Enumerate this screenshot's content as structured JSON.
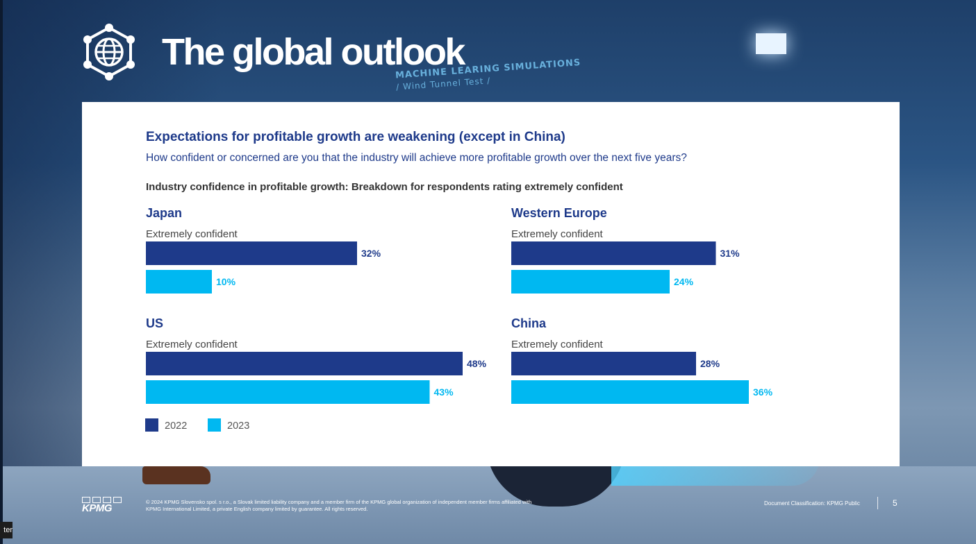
{
  "slide": {
    "title": "The global outlook",
    "heading": "Expectations for profitable growth are weakening (except in China)",
    "question": "How confident or concerned are you that the industry will achieve more profitable growth over the next five years?"
  },
  "chart_data": {
    "type": "bar",
    "orientation": "horizontal",
    "title": "Industry confidence in profitable growth: Breakdown for respondents rating extremely confident",
    "category_label": "Extremely confident",
    "value_suffix": "%",
    "xlim": [
      0,
      50
    ],
    "legend": [
      {
        "name": "2022",
        "color": "#1e3a8a"
      },
      {
        "name": "2023",
        "color": "#00b8f1"
      }
    ],
    "panels": [
      {
        "region": "Japan",
        "values": {
          "2022": 32,
          "2023": 10
        }
      },
      {
        "region": "Western Europe",
        "values": {
          "2022": 31,
          "2023": 24
        }
      },
      {
        "region": "US",
        "values": {
          "2022": 48,
          "2023": 43
        }
      },
      {
        "region": "China",
        "values": {
          "2022": 28,
          "2023": 36
        }
      }
    ]
  },
  "background": {
    "banner_line1": "MACHINE LEARING SIMULATIONS",
    "banner_line2": "/ Wind Tunnel Test /"
  },
  "footer": {
    "logo_text": "KPMG",
    "copyright": "© 2024 KPMG Slovensko spol. s r.o., a Slovak limited liability company and a member firm of the KPMG global organization of independent member firms affiliated with KPMG International Limited, a private English company limited by guarantee. All rights reserved.",
    "classification": "Document Classification: KPMG Public",
    "page_number": "5",
    "corner_tag": "ter"
  }
}
